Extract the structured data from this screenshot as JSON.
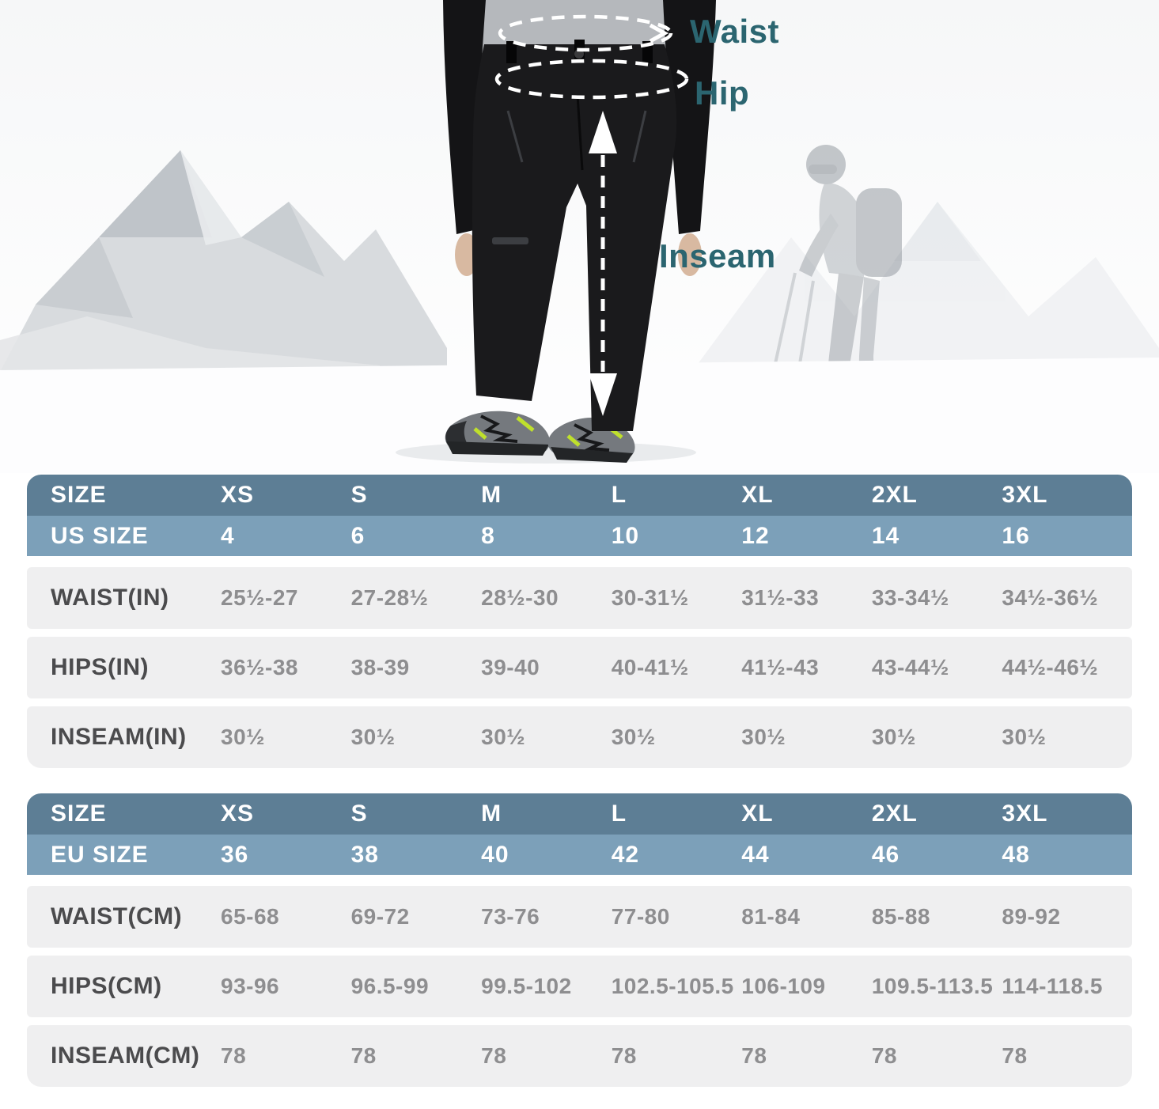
{
  "colors": {
    "annotation_teal": "#2b6570",
    "header_dark": "#5d7e95",
    "header_light": "#7ca0b9",
    "row_background": "#efeff0",
    "row_label_text": "#4b4b4d",
    "row_value_text": "#8e8e90"
  },
  "figure": {
    "annotations": {
      "waist": "Waist",
      "hip": "Hip",
      "inseam": "Inseam"
    }
  },
  "tables": [
    {
      "name": "us-size-chart",
      "size_row": {
        "label": "SIZE",
        "values": [
          "XS",
          "S",
          "M",
          "L",
          "XL",
          "2XL",
          "3XL"
        ]
      },
      "region_row": {
        "label": "US SIZE",
        "values": [
          "4",
          "6",
          "8",
          "10",
          "12",
          "14",
          "16"
        ]
      },
      "rows": [
        {
          "label": "WAIST(IN)",
          "values": [
            "25½-27",
            "27-28½",
            "28½-30",
            "30-31½",
            "31½-33",
            "33-34½",
            "34½-36½"
          ]
        },
        {
          "label": "HIPS(IN)",
          "values": [
            "36½-38",
            "38-39",
            "39-40",
            "40-41½",
            "41½-43",
            "43-44½",
            "44½-46½"
          ]
        },
        {
          "label": "INSEAM(IN)",
          "values": [
            "30½",
            "30½",
            "30½",
            "30½",
            "30½",
            "30½",
            "30½"
          ]
        }
      ]
    },
    {
      "name": "eu-size-chart",
      "size_row": {
        "label": "SIZE",
        "values": [
          "XS",
          "S",
          "M",
          "L",
          "XL",
          "2XL",
          "3XL"
        ]
      },
      "region_row": {
        "label": "EU SIZE",
        "values": [
          "36",
          "38",
          "40",
          "42",
          "44",
          "46",
          "48"
        ]
      },
      "rows": [
        {
          "label": "WAIST(CM)",
          "values": [
            "65-68",
            "69-72",
            "73-76",
            "77-80",
            "81-84",
            "85-88",
            "89-92"
          ]
        },
        {
          "label": "HIPS(CM)",
          "values": [
            "93-96",
            "96.5-99",
            "99.5-102",
            "102.5-105.5",
            "106-109",
            "109.5-113.5",
            "114-118.5"
          ]
        },
        {
          "label": "INSEAM(CM)",
          "values": [
            "78",
            "78",
            "78",
            "78",
            "78",
            "78",
            "78"
          ]
        }
      ]
    }
  ]
}
